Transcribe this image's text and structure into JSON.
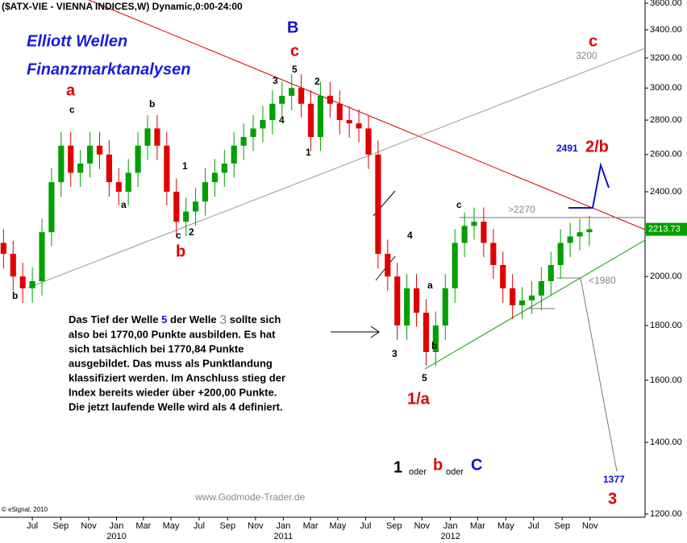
{
  "chart_data": {
    "type": "candlestick",
    "title": "($ATX-VIE - VIENNA INDICES,W) Dynamic,0:00-24:00",
    "x": [
      -9,
      -6,
      -3,
      0,
      3,
      6,
      9,
      12,
      15,
      18,
      21,
      24,
      27,
      30,
      33,
      36,
      39,
      42,
      45,
      48,
      51,
      54,
      57,
      60,
      63,
      66,
      69,
      72,
      75,
      78,
      81,
      84,
      87,
      90,
      93,
      96,
      99,
      102,
      105,
      108,
      111,
      114,
      117,
      120,
      123,
      126,
      129,
      132,
      135,
      138,
      141,
      144,
      147,
      150,
      153,
      156,
      159,
      162,
      165,
      168,
      171,
      174
    ],
    "open": [
      2150,
      2100,
      2000,
      1950,
      1980,
      2200,
      2450,
      2650,
      2500,
      2550,
      2650,
      2600,
      2450,
      2400,
      2500,
      2650,
      2750,
      2650,
      2400,
      2250,
      2300,
      2350,
      2450,
      2500,
      2550,
      2650,
      2700,
      2750,
      2800,
      2900,
      2950,
      3000,
      2900,
      2700,
      2950,
      2900,
      2800,
      2780,
      2750,
      2600,
      2100,
      2000,
      1800,
      1950,
      1850,
      1700,
      1800,
      1950,
      2150,
      2230,
      2250,
      2150,
      2050,
      1950,
      1880,
      1900,
      1920,
      1980,
      2050,
      2150,
      2180,
      2200
    ],
    "high": [
      2215,
      2160,
      2060,
      2040,
      2265,
      2525,
      2730,
      2730,
      2625,
      2730,
      2730,
      2680,
      2525,
      2575,
      2730,
      2830,
      2830,
      2730,
      2470,
      2370,
      2420,
      2525,
      2575,
      2625,
      2730,
      2780,
      2830,
      2885,
      2985,
      3040,
      3090,
      3090,
      2985,
      3040,
      3040,
      2985,
      2885,
      2865,
      2830,
      2680,
      2165,
      2060,
      2010,
      2010,
      1905,
      1855,
      2010,
      2215,
      2295,
      2320,
      2320,
      2215,
      2110,
      2010,
      1955,
      1980,
      2040,
      2110,
      2215,
      2245,
      2265,
      2280
    ],
    "low": [
      2035,
      1940,
      1890,
      1890,
      1920,
      2135,
      2375,
      2425,
      2425,
      2475,
      2520,
      2375,
      2330,
      2330,
      2425,
      2570,
      2570,
      2330,
      2180,
      2180,
      2230,
      2280,
      2375,
      2425,
      2475,
      2570,
      2620,
      2670,
      2715,
      2815,
      2860,
      2815,
      2620,
      2620,
      2815,
      2715,
      2695,
      2670,
      2520,
      2035,
      1940,
      1745,
      1745,
      1795,
      1650,
      1650,
      1745,
      1890,
      2085,
      2165,
      2085,
      1990,
      1890,
      1825,
      1825,
      1845,
      1860,
      1920,
      1990,
      2085,
      2115,
      2135
    ],
    "close": [
      2100,
      2000,
      1950,
      1980,
      2200,
      2450,
      2650,
      2500,
      2550,
      2650,
      2600,
      2450,
      2400,
      2500,
      2650,
      2750,
      2650,
      2400,
      2250,
      2300,
      2350,
      2450,
      2500,
      2550,
      2650,
      2700,
      2750,
      2800,
      2900,
      2950,
      3000,
      2900,
      2700,
      2950,
      2900,
      2800,
      2780,
      2750,
      2600,
      2100,
      2000,
      1800,
      1950,
      1850,
      1700,
      1800,
      1950,
      2150,
      2230,
      2250,
      2150,
      2050,
      1950,
      1880,
      1900,
      1920,
      1980,
      2050,
      2150,
      2180,
      2200,
      2214
    ],
    "up_color": "#00a000",
    "down_color": "#e00000",
    "last_price": 2213.73,
    "log_scale": true,
    "ylim": [
      1200,
      3600
    ],
    "yticks": [
      {
        "value": 1200,
        "label": "1200.00"
      },
      {
        "value": 1400,
        "label": "1400.00"
      },
      {
        "value": 1600,
        "label": "1600.00"
      },
      {
        "value": 1800,
        "label": "1800.00"
      },
      {
        "value": 2000,
        "label": "2000.00"
      },
      {
        "value": 2200,
        "label": "2200.00"
      },
      {
        "value": 2400,
        "label": "2400.00"
      },
      {
        "value": 2600,
        "label": "2600.00"
      },
      {
        "value": 2800,
        "label": "2800.00"
      },
      {
        "value": 3000,
        "label": "3000.00"
      },
      {
        "value": 3200,
        "label": "3200.00"
      },
      {
        "value": 3400,
        "label": "3400.00"
      },
      {
        "value": 3600,
        "label": "3600.00"
      }
    ],
    "xlim": [
      -10.1,
      191.4
    ],
    "xticks": [
      {
        "value": 0,
        "label": "Jul"
      },
      {
        "value": 8.9,
        "label": "Sep"
      },
      {
        "value": 17.6,
        "label": "Nov"
      },
      {
        "value": 26.3,
        "label": "Jan"
      },
      {
        "value": 34.7,
        "label": "Mar"
      },
      {
        "value": 43.3,
        "label": "May"
      },
      {
        "value": 52.1,
        "label": "Jul"
      },
      {
        "value": 61,
        "label": "Sep"
      },
      {
        "value": 69.7,
        "label": "Nov"
      },
      {
        "value": 78.4,
        "label": "Jan"
      },
      {
        "value": 86.9,
        "label": "Mar"
      },
      {
        "value": 95.4,
        "label": "May"
      },
      {
        "value": 104.1,
        "label": "Jul"
      },
      {
        "value": 113,
        "label": "Sep"
      },
      {
        "value": 121.7,
        "label": "Nov"
      },
      {
        "value": 130.6,
        "label": "Jan"
      },
      {
        "value": 139.1,
        "label": "Mar"
      },
      {
        "value": 147.9,
        "label": "May"
      },
      {
        "value": 156.6,
        "label": "Jul"
      },
      {
        "value": 165.5,
        "label": "Sep"
      },
      {
        "value": 174.2,
        "label": "Nov"
      }
    ],
    "years": [
      {
        "value": 26.3,
        "label": "2010"
      },
      {
        "value": 78.4,
        "label": "2011"
      },
      {
        "value": 130.6,
        "label": "2012"
      }
    ],
    "annotations": [
      "Elliott Wellen",
      "Finanzmarktanalysen",
      "B",
      "c",
      "c",
      "3200",
      "a",
      "c",
      "b",
      "3",
      "5",
      "2",
      "4",
      "1",
      "1",
      "a",
      "c",
      "2",
      "b",
      "b",
      "4",
      "a",
      "b",
      "3",
      "5",
      "1/a",
      "c",
      ">2270",
      "2491",
      "2/b",
      "<1980",
      "1377",
      "3",
      "1",
      "oder",
      "b",
      "oder",
      "C",
      "www.Godmode-Trader.de",
      "© eSignal, 2010"
    ],
    "note": [
      [
        "Das Tief der Welle",
        "5",
        "der Welle",
        "3",
        "sollte sich"
      ],
      "also bei 1770,00 Punkte ausbilden. Es hat",
      "sich tatsächlich bei 1770,84 Punkte",
      "ausgebildet. Das muss als Punktlandung",
      "klassifiziert werden. Im Anschluss stieg der",
      "Index bereits wieder über +200,00 Punkte.",
      "Die jetzt laufende Welle wird als 4 definiert."
    ]
  }
}
